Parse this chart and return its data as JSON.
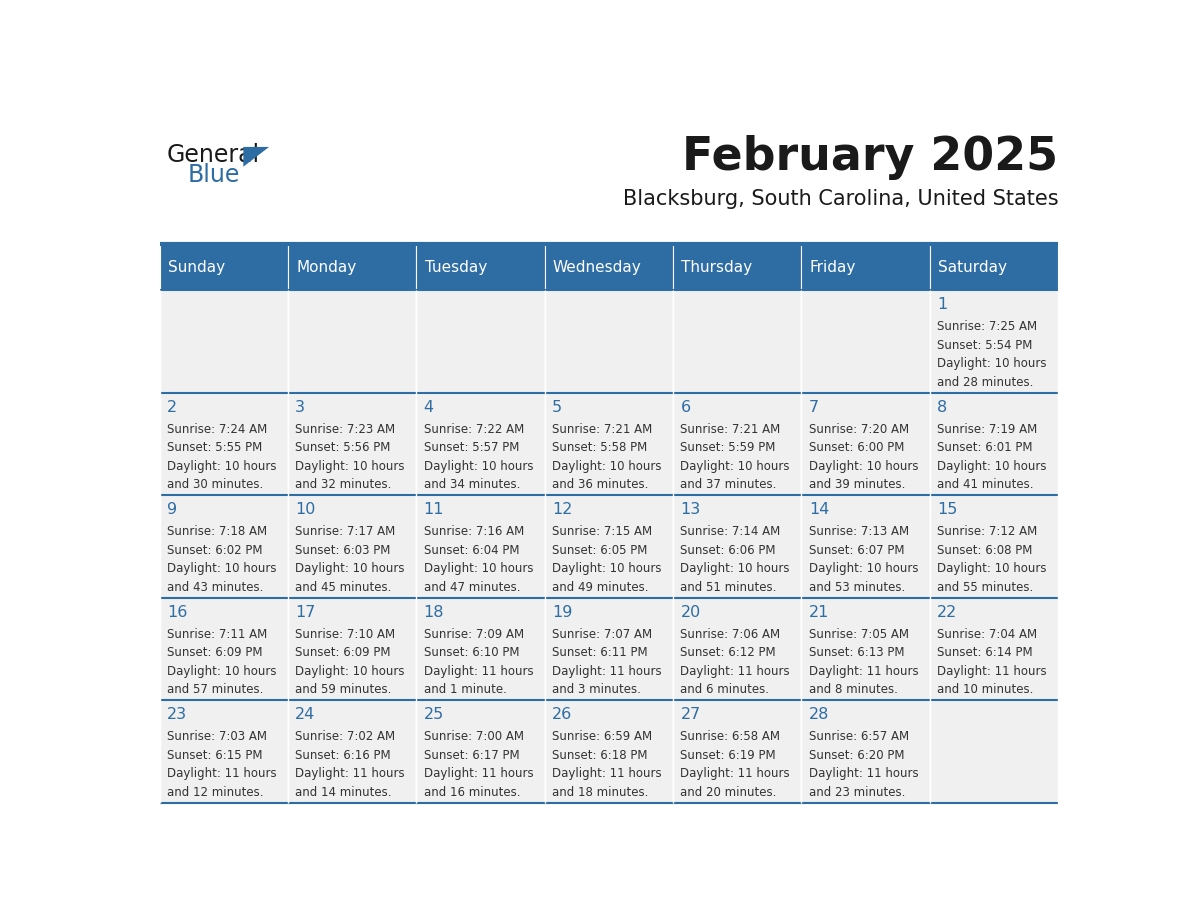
{
  "title": "February 2025",
  "subtitle": "Blacksburg, South Carolina, United States",
  "header_color": "#2E6DA4",
  "header_text_color": "#FFFFFF",
  "cell_bg_color": "#F0F0F0",
  "border_color": "#2E6DA4",
  "text_color": "#333333",
  "day_number_color": "#2E6DA4",
  "days_of_week": [
    "Sunday",
    "Monday",
    "Tuesday",
    "Wednesday",
    "Thursday",
    "Friday",
    "Saturday"
  ],
  "calendar_data": [
    [
      "",
      "",
      "",
      "",
      "",
      "",
      "1\nSunrise: 7:25 AM\nSunset: 5:54 PM\nDaylight: 10 hours\nand 28 minutes."
    ],
    [
      "2\nSunrise: 7:24 AM\nSunset: 5:55 PM\nDaylight: 10 hours\nand 30 minutes.",
      "3\nSunrise: 7:23 AM\nSunset: 5:56 PM\nDaylight: 10 hours\nand 32 minutes.",
      "4\nSunrise: 7:22 AM\nSunset: 5:57 PM\nDaylight: 10 hours\nand 34 minutes.",
      "5\nSunrise: 7:21 AM\nSunset: 5:58 PM\nDaylight: 10 hours\nand 36 minutes.",
      "6\nSunrise: 7:21 AM\nSunset: 5:59 PM\nDaylight: 10 hours\nand 37 minutes.",
      "7\nSunrise: 7:20 AM\nSunset: 6:00 PM\nDaylight: 10 hours\nand 39 minutes.",
      "8\nSunrise: 7:19 AM\nSunset: 6:01 PM\nDaylight: 10 hours\nand 41 minutes."
    ],
    [
      "9\nSunrise: 7:18 AM\nSunset: 6:02 PM\nDaylight: 10 hours\nand 43 minutes.",
      "10\nSunrise: 7:17 AM\nSunset: 6:03 PM\nDaylight: 10 hours\nand 45 minutes.",
      "11\nSunrise: 7:16 AM\nSunset: 6:04 PM\nDaylight: 10 hours\nand 47 minutes.",
      "12\nSunrise: 7:15 AM\nSunset: 6:05 PM\nDaylight: 10 hours\nand 49 minutes.",
      "13\nSunrise: 7:14 AM\nSunset: 6:06 PM\nDaylight: 10 hours\nand 51 minutes.",
      "14\nSunrise: 7:13 AM\nSunset: 6:07 PM\nDaylight: 10 hours\nand 53 minutes.",
      "15\nSunrise: 7:12 AM\nSunset: 6:08 PM\nDaylight: 10 hours\nand 55 minutes."
    ],
    [
      "16\nSunrise: 7:11 AM\nSunset: 6:09 PM\nDaylight: 10 hours\nand 57 minutes.",
      "17\nSunrise: 7:10 AM\nSunset: 6:09 PM\nDaylight: 10 hours\nand 59 minutes.",
      "18\nSunrise: 7:09 AM\nSunset: 6:10 PM\nDaylight: 11 hours\nand 1 minute.",
      "19\nSunrise: 7:07 AM\nSunset: 6:11 PM\nDaylight: 11 hours\nand 3 minutes.",
      "20\nSunrise: 7:06 AM\nSunset: 6:12 PM\nDaylight: 11 hours\nand 6 minutes.",
      "21\nSunrise: 7:05 AM\nSunset: 6:13 PM\nDaylight: 11 hours\nand 8 minutes.",
      "22\nSunrise: 7:04 AM\nSunset: 6:14 PM\nDaylight: 11 hours\nand 10 minutes."
    ],
    [
      "23\nSunrise: 7:03 AM\nSunset: 6:15 PM\nDaylight: 11 hours\nand 12 minutes.",
      "24\nSunrise: 7:02 AM\nSunset: 6:16 PM\nDaylight: 11 hours\nand 14 minutes.",
      "25\nSunrise: 7:00 AM\nSunset: 6:17 PM\nDaylight: 11 hours\nand 16 minutes.",
      "26\nSunrise: 6:59 AM\nSunset: 6:18 PM\nDaylight: 11 hours\nand 18 minutes.",
      "27\nSunrise: 6:58 AM\nSunset: 6:19 PM\nDaylight: 11 hours\nand 20 minutes.",
      "28\nSunrise: 6:57 AM\nSunset: 6:20 PM\nDaylight: 11 hours\nand 23 minutes.",
      ""
    ]
  ]
}
